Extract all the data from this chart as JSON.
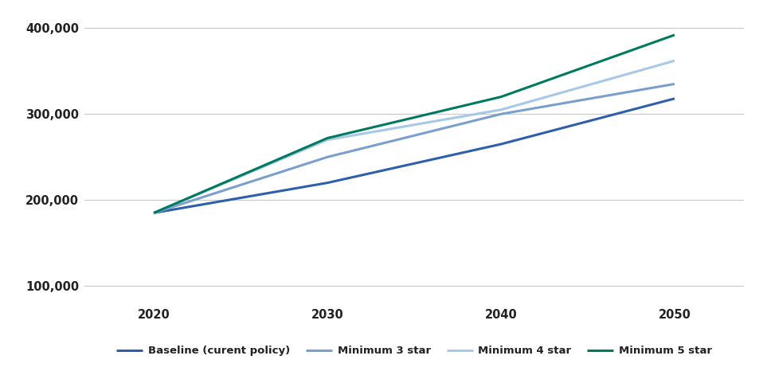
{
  "years": [
    2020,
    2030,
    2040,
    2050
  ],
  "series": [
    {
      "label": "Baseline (curent policy)",
      "values": [
        185000,
        220000,
        265000,
        318000
      ],
      "color": "#2E5FAC",
      "linewidth": 2.2
    },
    {
      "label": "Minimum 3 star",
      "values": [
        185000,
        250000,
        300000,
        335000
      ],
      "color": "#7B9FCC",
      "linewidth": 2.2
    },
    {
      "label": "Minimum 4 star",
      "values": [
        185000,
        270000,
        305000,
        362000
      ],
      "color": "#A8C8E8",
      "linewidth": 2.2
    },
    {
      "label": "Minimum 5 star",
      "values": [
        185000,
        272000,
        320000,
        392000
      ],
      "color": "#007A5E",
      "linewidth": 2.2
    }
  ],
  "ylim": [
    80000,
    415000
  ],
  "yticks": [
    100000,
    200000,
    300000,
    400000
  ],
  "ytick_labels": [
    "100,000",
    "200,000",
    "300,000",
    "400,000"
  ],
  "xticks": [
    2020,
    2030,
    2040,
    2050
  ],
  "xlim": [
    2016,
    2054
  ],
  "background_color": "#ffffff",
  "grid_color": "#C8C8C8",
  "legend_fontsize": 9.5,
  "tick_fontsize": 10.5
}
